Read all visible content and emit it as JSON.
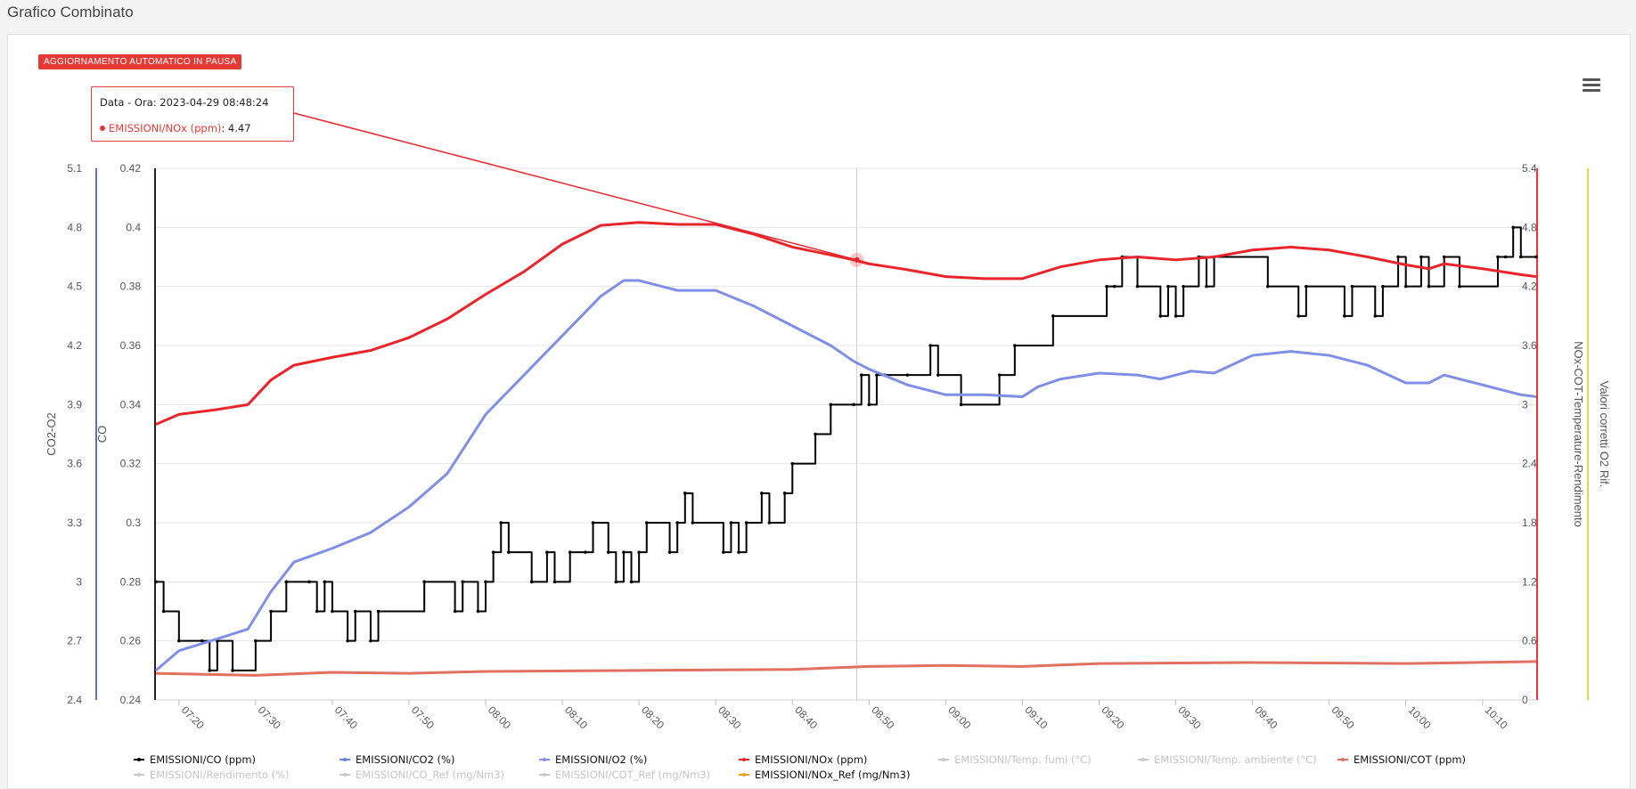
{
  "page": {
    "title": "Grafico Combinato"
  },
  "badge": {
    "text": "AGGIORNAMENTO AUTOMATICO IN PAUSA"
  },
  "tooltip": {
    "line1": "Data - Ora: 2023-04-29 08:48:24",
    "series": "EMISSIONI/NOx (ppm)",
    "value": ": 4.47"
  },
  "colors": {
    "co": "#000000",
    "co2": "#6b7fd7",
    "o2": "#7f8fe6",
    "nox": "#e8252a",
    "cot": "#e07060",
    "axis_co2": "#5a6fc9",
    "axis_nox": "#e53935",
    "axis_corr": "#e8d44d",
    "grid": "#e6e6e6",
    "disabled": "#c8c8c8"
  },
  "chart_data": {
    "type": "line",
    "x_ticks": [
      "07:20",
      "07:30",
      "07:40",
      "07:50",
      "08:00",
      "08:10",
      "08:20",
      "08:30",
      "08:40",
      "08:50",
      "09:00",
      "09:10",
      "09:20",
      "09:30",
      "09:40",
      "09:50",
      "10:00",
      "10:10"
    ],
    "x_range": [
      "07:17",
      "10:17"
    ],
    "crosshair_x": "08:48:24",
    "axes": {
      "co2_o2": {
        "label": "CO2-O2",
        "ticks": [
          "2.4",
          "2.7",
          "3",
          "3.3",
          "3.6",
          "3.9",
          "4.2",
          "4.5",
          "4.8",
          "5.1"
        ],
        "range": [
          2.4,
          5.1
        ]
      },
      "co": {
        "label": "CO",
        "ticks": [
          "0.24",
          "0.26",
          "0.28",
          "0.3",
          "0.32",
          "0.34",
          "0.36",
          "0.38",
          "0.4",
          "0.42"
        ],
        "range": [
          0.24,
          0.42
        ]
      },
      "right": {
        "label": "NOx-COT-Temperature-Rendimento",
        "ticks": [
          "0",
          "0.6",
          "1.2",
          "1.8",
          "2.4",
          "3",
          "3.6",
          "4.2",
          "4.8",
          "5.4"
        ],
        "range": [
          0,
          5.4
        ]
      },
      "corr": {
        "label": "Valori corretti O2 Rif."
      }
    },
    "series": [
      {
        "name": "EMISSIONI/CO (ppm)",
        "axis": "co",
        "step": true,
        "points": [
          [
            "07:17",
            0.28
          ],
          [
            "07:18",
            0.27
          ],
          [
            "07:20",
            0.26
          ],
          [
            "07:23",
            0.26
          ],
          [
            "07:24",
            0.25
          ],
          [
            "07:25",
            0.26
          ],
          [
            "07:27",
            0.25
          ],
          [
            "07:30",
            0.26
          ],
          [
            "07:32",
            0.27
          ],
          [
            "07:34",
            0.28
          ],
          [
            "07:37",
            0.28
          ],
          [
            "07:38",
            0.27
          ],
          [
            "07:39",
            0.28
          ],
          [
            "07:40",
            0.27
          ],
          [
            "07:42",
            0.26
          ],
          [
            "07:43",
            0.27
          ],
          [
            "07:45",
            0.26
          ],
          [
            "07:46",
            0.27
          ],
          [
            "07:52",
            0.28
          ],
          [
            "07:56",
            0.27
          ],
          [
            "07:57",
            0.28
          ],
          [
            "07:59",
            0.27
          ],
          [
            "08:00",
            0.28
          ],
          [
            "08:01",
            0.29
          ],
          [
            "08:02",
            0.3
          ],
          [
            "08:03",
            0.29
          ],
          [
            "08:06",
            0.28
          ],
          [
            "08:08",
            0.29
          ],
          [
            "08:09",
            0.28
          ],
          [
            "08:11",
            0.29
          ],
          [
            "08:13",
            0.29
          ],
          [
            "08:14",
            0.3
          ],
          [
            "08:16",
            0.29
          ],
          [
            "08:17",
            0.28
          ],
          [
            "08:18",
            0.29
          ],
          [
            "08:19",
            0.28
          ],
          [
            "08:20",
            0.29
          ],
          [
            "08:21",
            0.3
          ],
          [
            "08:24",
            0.29
          ],
          [
            "08:25",
            0.3
          ],
          [
            "08:26",
            0.31
          ],
          [
            "08:27",
            0.3
          ],
          [
            "08:31",
            0.29
          ],
          [
            "08:32",
            0.3
          ],
          [
            "08:33",
            0.29
          ],
          [
            "08:34",
            0.3
          ],
          [
            "08:36",
            0.31
          ],
          [
            "08:37",
            0.3
          ],
          [
            "08:39",
            0.31
          ],
          [
            "08:40",
            0.32
          ],
          [
            "08:43",
            0.33
          ],
          [
            "08:45",
            0.34
          ],
          [
            "08:48",
            0.34
          ],
          [
            "08:49",
            0.35
          ],
          [
            "08:50",
            0.34
          ],
          [
            "08:51",
            0.35
          ],
          [
            "08:52",
            0.35
          ],
          [
            "08:55",
            0.35
          ],
          [
            "08:58",
            0.36
          ],
          [
            "08:59",
            0.35
          ],
          [
            "09:02",
            0.34
          ],
          [
            "09:07",
            0.35
          ],
          [
            "09:09",
            0.36
          ],
          [
            "09:14",
            0.37
          ],
          [
            "09:21",
            0.38
          ],
          [
            "09:22",
            0.38
          ],
          [
            "09:23",
            0.39
          ],
          [
            "09:25",
            0.38
          ],
          [
            "09:28",
            0.37
          ],
          [
            "09:29",
            0.38
          ],
          [
            "09:30",
            0.37
          ],
          [
            "09:31",
            0.38
          ],
          [
            "09:33",
            0.39
          ],
          [
            "09:34",
            0.38
          ],
          [
            "09:35",
            0.39
          ],
          [
            "09:42",
            0.38
          ],
          [
            "09:46",
            0.37
          ],
          [
            "09:47",
            0.38
          ],
          [
            "09:52",
            0.37
          ],
          [
            "09:53",
            0.38
          ],
          [
            "09:56",
            0.37
          ],
          [
            "09:57",
            0.38
          ],
          [
            "09:59",
            0.39
          ],
          [
            "10:00",
            0.38
          ],
          [
            "10:02",
            0.39
          ],
          [
            "10:03",
            0.38
          ],
          [
            "10:05",
            0.39
          ],
          [
            "10:07",
            0.38
          ],
          [
            "10:12",
            0.39
          ],
          [
            "10:13",
            0.39
          ],
          [
            "10:14",
            0.4
          ],
          [
            "10:15",
            0.39
          ],
          [
            "10:17",
            0.39
          ]
        ]
      },
      {
        "name": "EMISSIONI/O2 (%)",
        "axis": "co2_o2",
        "points": [
          [
            "07:17",
            2.55
          ],
          [
            "07:20",
            2.65
          ],
          [
            "07:25",
            2.71
          ],
          [
            "07:29",
            2.76
          ],
          [
            "07:32",
            2.95
          ],
          [
            "07:35",
            3.1
          ],
          [
            "07:40",
            3.17
          ],
          [
            "07:45",
            3.25
          ],
          [
            "07:50",
            3.38
          ],
          [
            "07:55",
            3.55
          ],
          [
            "08:00",
            3.85
          ],
          [
            "08:05",
            4.05
          ],
          [
            "08:10",
            4.25
          ],
          [
            "08:15",
            4.45
          ],
          [
            "08:18",
            4.53
          ],
          [
            "08:20",
            4.53
          ],
          [
            "08:25",
            4.48
          ],
          [
            "08:30",
            4.48
          ],
          [
            "08:35",
            4.4
          ],
          [
            "08:40",
            4.3
          ],
          [
            "08:45",
            4.2
          ],
          [
            "08:48",
            4.12
          ],
          [
            "08:50",
            4.08
          ],
          [
            "08:55",
            4.0
          ],
          [
            "09:00",
            3.95
          ],
          [
            "09:05",
            3.95
          ],
          [
            "09:10",
            3.94
          ],
          [
            "09:12",
            3.99
          ],
          [
            "09:15",
            4.03
          ],
          [
            "09:20",
            4.06
          ],
          [
            "09:25",
            4.05
          ],
          [
            "09:28",
            4.03
          ],
          [
            "09:32",
            4.07
          ],
          [
            "09:35",
            4.06
          ],
          [
            "09:40",
            4.15
          ],
          [
            "09:45",
            4.17
          ],
          [
            "09:50",
            4.15
          ],
          [
            "09:55",
            4.1
          ],
          [
            "10:00",
            4.01
          ],
          [
            "10:03",
            4.01
          ],
          [
            "10:05",
            4.05
          ],
          [
            "10:10",
            4.0
          ],
          [
            "10:15",
            3.95
          ],
          [
            "10:17",
            3.94
          ]
        ]
      },
      {
        "name": "EMISSIONI/NOx (ppm)",
        "axis": "right",
        "points": [
          [
            "07:17",
            2.8
          ],
          [
            "07:20",
            2.9
          ],
          [
            "07:25",
            2.95
          ],
          [
            "07:29",
            3.0
          ],
          [
            "07:32",
            3.25
          ],
          [
            "07:35",
            3.4
          ],
          [
            "07:40",
            3.48
          ],
          [
            "07:45",
            3.55
          ],
          [
            "07:50",
            3.68
          ],
          [
            "07:55",
            3.87
          ],
          [
            "08:00",
            4.12
          ],
          [
            "08:05",
            4.35
          ],
          [
            "08:10",
            4.63
          ],
          [
            "08:15",
            4.82
          ],
          [
            "08:20",
            4.85
          ],
          [
            "08:25",
            4.83
          ],
          [
            "08:30",
            4.83
          ],
          [
            "08:35",
            4.73
          ],
          [
            "08:40",
            4.6
          ],
          [
            "08:45",
            4.52
          ],
          [
            "08:48",
            4.47
          ],
          [
            "08:50",
            4.43
          ],
          [
            "08:55",
            4.37
          ],
          [
            "09:00",
            4.3
          ],
          [
            "09:05",
            4.28
          ],
          [
            "09:10",
            4.28
          ],
          [
            "09:15",
            4.4
          ],
          [
            "09:20",
            4.47
          ],
          [
            "09:25",
            4.5
          ],
          [
            "09:30",
            4.47
          ],
          [
            "09:35",
            4.5
          ],
          [
            "09:40",
            4.57
          ],
          [
            "09:45",
            4.6
          ],
          [
            "09:50",
            4.57
          ],
          [
            "09:55",
            4.5
          ],
          [
            "10:00",
            4.42
          ],
          [
            "10:03",
            4.38
          ],
          [
            "10:05",
            4.43
          ],
          [
            "10:10",
            4.38
          ],
          [
            "10:15",
            4.32
          ],
          [
            "10:17",
            4.3
          ]
        ]
      },
      {
        "name": "EMISSIONI/COT (ppm)",
        "axis": "right",
        "points": [
          [
            "07:17",
            0.27
          ],
          [
            "07:30",
            0.25
          ],
          [
            "07:40",
            0.28
          ],
          [
            "07:50",
            0.27
          ],
          [
            "08:00",
            0.29
          ],
          [
            "08:20",
            0.3
          ],
          [
            "08:40",
            0.31
          ],
          [
            "08:50",
            0.34
          ],
          [
            "09:00",
            0.35
          ],
          [
            "09:10",
            0.34
          ],
          [
            "09:20",
            0.37
          ],
          [
            "09:40",
            0.38
          ],
          [
            "10:00",
            0.37
          ],
          [
            "10:17",
            0.39
          ]
        ]
      }
    ],
    "tooltip_point": {
      "x": "08:48:24",
      "series": "EMISSIONI/NOx (ppm)",
      "y": 4.47
    }
  },
  "legend": [
    {
      "label": "EMISSIONI/CO (ppm)",
      "color": "#000000",
      "active": true
    },
    {
      "label": "EMISSIONI/CO2 (%)",
      "color": "#6b7fd7",
      "active": true
    },
    {
      "label": "EMISSIONI/O2 (%)",
      "color": "#7f8fe6",
      "active": true
    },
    {
      "label": "EMISSIONI/NOx (ppm)",
      "color": "#e8252a",
      "active": true
    },
    {
      "label": "EMISSIONI/Temp. fumi (°C)",
      "color": "#c8c8c8",
      "active": false
    },
    {
      "label": "EMISSIONI/Temp. ambiente (°C)",
      "color": "#c8c8c8",
      "active": false
    },
    {
      "label": "EMISSIONI/COT (ppm)",
      "color": "#e07060",
      "active": true
    },
    {
      "label": "EMISSIONI/Rendimento (%)",
      "color": "#c8c8c8",
      "active": false
    },
    {
      "label": "EMISSIONI/CO_Ref (mg/Nm3)",
      "color": "#c8c8c8",
      "active": false
    },
    {
      "label": "EMISSIONI/COT_Ref (mg/Nm3)",
      "color": "#c8c8c8",
      "active": false
    },
    {
      "label": "EMISSIONI/NOx_Ref (mg/Nm3)",
      "color": "#e8a020",
      "active": true
    }
  ]
}
